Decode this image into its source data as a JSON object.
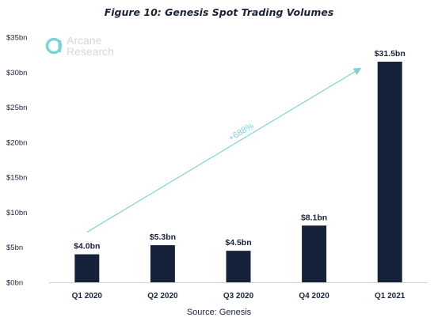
{
  "chart_data": {
    "type": "bar",
    "title": "Figure 10: Genesis Spot Trading Volumes",
    "categories": [
      "Q1 2020",
      "Q2 2020",
      "Q3 2020",
      "Q4 2020",
      "Q1 2021"
    ],
    "values": [
      4.0,
      5.3,
      4.5,
      8.1,
      31.5
    ],
    "data_labels": [
      "$4.0bn",
      "$5.3bn",
      "$4.5bn",
      "$8.1bn",
      "$31.5bn"
    ],
    "ylim": [
      0,
      35
    ],
    "yticks": [
      0,
      5,
      10,
      15,
      20,
      25,
      30,
      35
    ],
    "ytick_labels": [
      "$0bn",
      "$5bn",
      "$10bn",
      "$15bn",
      "$20bn",
      "$25bn",
      "$30bn",
      "$35bn"
    ],
    "xlabel": "",
    "ylabel": "",
    "grid": false,
    "annotation": {
      "text": "+688%",
      "from_category": "Q1 2020",
      "to_category": "Q1 2021"
    },
    "source": "Source: Genesis",
    "bar_color": "#16223a",
    "annotation_color": "#7ed2d6"
  },
  "logo": {
    "line1": "Arcane",
    "line2": "Research",
    "color": "#d3d7dc",
    "mark_color": "#7ed2d6"
  }
}
